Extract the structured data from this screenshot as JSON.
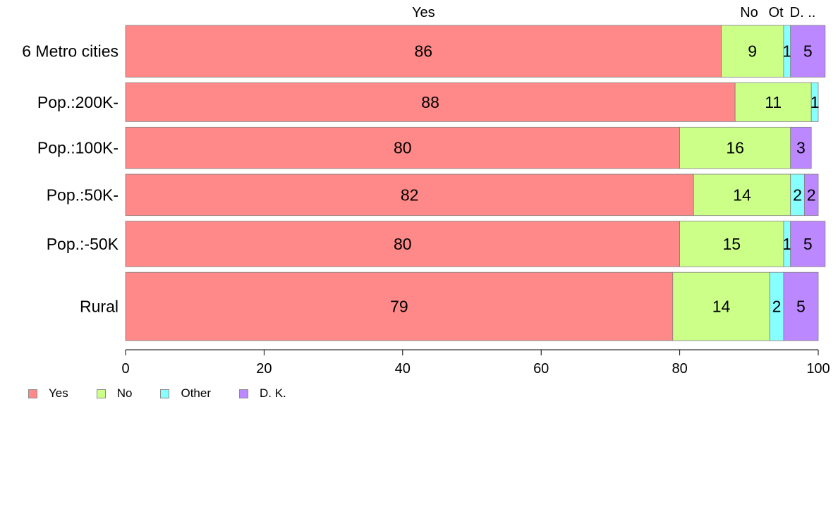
{
  "chart_data": {
    "type": "bar",
    "orientation": "horizontal",
    "stacked": true,
    "categories": [
      "6 Metro cities",
      "Pop.:200K-",
      "Pop.:100K-",
      "Pop.:50K-",
      "Pop.:-50K",
      "Rural"
    ],
    "category_weights": [
      1.0,
      0.75,
      0.8,
      0.8,
      0.88,
      1.32
    ],
    "series": [
      {
        "name": "Yes",
        "color": "#ff8888",
        "values": [
          86,
          88,
          80,
          82,
          80,
          79
        ],
        "labels": [
          "86",
          "88",
          "80",
          "82",
          "80",
          "79"
        ]
      },
      {
        "name": "No",
        "color": "#ccff88",
        "values": [
          9,
          11,
          16,
          14,
          15,
          14
        ],
        "labels": [
          "9",
          "11",
          "16",
          "14",
          "15",
          "14"
        ]
      },
      {
        "name": "Other",
        "color": "#88ffff",
        "values": [
          1,
          1,
          0,
          2,
          1,
          2
        ],
        "labels": [
          "1",
          "1",
          "",
          "2",
          "1",
          "2"
        ]
      },
      {
        "name": "D. K.",
        "color": "#bb88ff",
        "values": [
          5,
          0,
          3,
          2,
          5,
          5
        ],
        "labels": [
          "5",
          "",
          "3",
          "2",
          "5",
          "5"
        ]
      }
    ],
    "top_labels": [
      "Yes",
      "No",
      "Ot",
      "D. .."
    ],
    "xlim": [
      0,
      100
    ],
    "xticks": [
      "0",
      "20",
      "40",
      "60",
      "80",
      "100"
    ],
    "grid": false,
    "legend_position": "bottom-left",
    "title": "",
    "xlabel": "",
    "ylabel": ""
  }
}
